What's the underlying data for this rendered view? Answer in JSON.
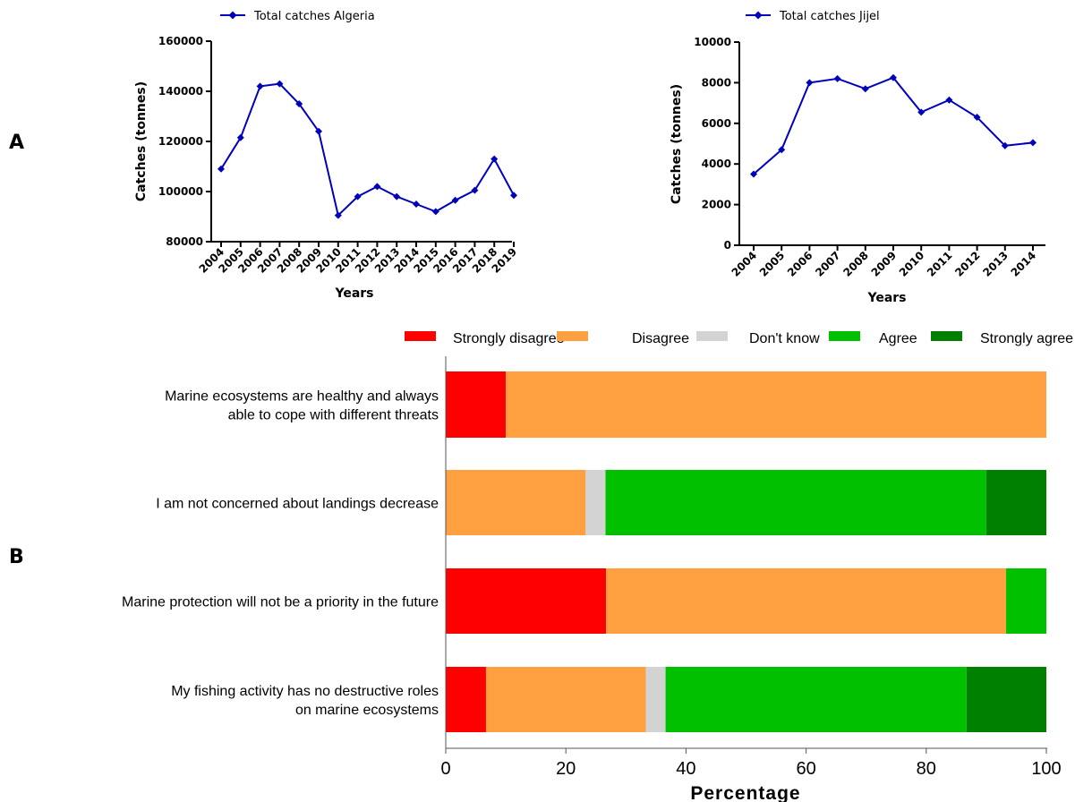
{
  "panels": {
    "a_label": "A",
    "b_label": "B"
  },
  "chart_data": [
    {
      "type": "line",
      "legend": "Total catches Algeria",
      "xlabel": "Years",
      "ylabel": "Catches (tonnes)",
      "ylim": [
        80000,
        160000
      ],
      "yticks": [
        "80000",
        "100000",
        "120000",
        "140000",
        "160000"
      ],
      "color": "#0000bb",
      "x": [
        "2004",
        "2005",
        "2006",
        "2007",
        "2008",
        "2009",
        "2010",
        "2011",
        "2012",
        "2013",
        "2014",
        "2015",
        "2016",
        "2017",
        "2018",
        "2019"
      ],
      "series": [
        {
          "name": "Total catches Algeria",
          "values": [
            109000,
            121500,
            142000,
            143000,
            135000,
            124000,
            90500,
            98000,
            102000,
            98000,
            95000,
            92000,
            96500,
            100500,
            113000,
            98500
          ]
        }
      ]
    },
    {
      "type": "line",
      "legend": "Total catches Jijel",
      "xlabel": "Years",
      "ylabel": "Catches (tonnes)",
      "ylim": [
        0,
        10000
      ],
      "yticks": [
        "0",
        "2000",
        "4000",
        "6000",
        "8000",
        "10000"
      ],
      "color": "#0000bb",
      "x": [
        "2004",
        "2005",
        "2006",
        "2007",
        "2008",
        "2009",
        "2010",
        "2011",
        "2012",
        "2013",
        "2014"
      ],
      "series": [
        {
          "name": "Total catches Jijel",
          "values": [
            3500,
            4700,
            8000,
            8200,
            7700,
            8250,
            6550,
            7150,
            6300,
            4900,
            5050
          ]
        }
      ]
    },
    {
      "type": "bar",
      "orientation": "horizontal-stacked",
      "xlabel": "Percentage",
      "xlim": [
        0,
        100
      ],
      "xticks": [
        "0",
        "20",
        "40",
        "60",
        "80",
        "100"
      ],
      "categories": [
        [
          "Marine ecosystems are healthy and always",
          "able to cope with different threats"
        ],
        [
          "I am not concerned about landings decrease"
        ],
        [
          "Marine protection will not be a priority in the future"
        ],
        [
          "My fishing activity has no destructive roles",
          "on marine ecosystems"
        ]
      ],
      "series": [
        {
          "name": "Strongly disagree",
          "color": "#ff0000",
          "values": [
            10,
            0,
            26.7,
            6.7
          ]
        },
        {
          "name": "Disagree",
          "color": "#ffa040",
          "values": [
            90,
            23.3,
            66.6,
            26.6
          ]
        },
        {
          "name": "Don't know",
          "color": "#d3d3d3",
          "values": [
            0,
            3.3,
            0,
            3.3
          ]
        },
        {
          "name": "Agree",
          "color": "#00c000",
          "values": [
            0,
            63.4,
            6.7,
            50.1
          ]
        },
        {
          "name": "Strongly agree",
          "color": "#008000",
          "values": [
            0,
            10,
            0,
            13.3
          ]
        }
      ]
    }
  ]
}
